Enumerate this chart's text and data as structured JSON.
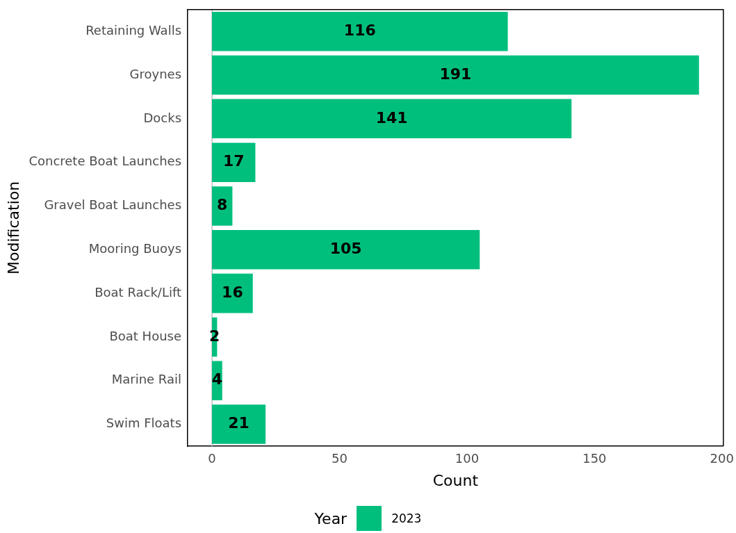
{
  "chart_data": {
    "type": "bar",
    "orientation": "horizontal",
    "xlabel": "Count",
    "ylabel": "Modification",
    "legend_title": "Year",
    "categories": [
      "Retaining Walls",
      "Groynes",
      "Docks",
      "Concrete Boat Launches",
      "Gravel Boat Launches",
      "Mooring Buoys",
      "Boat Rack/Lift",
      "Boat House",
      "Marine Rail",
      "Swim Floats"
    ],
    "series": [
      {
        "name": "2023",
        "color": "#00bf7d",
        "values": [
          116,
          191,
          141,
          17,
          8,
          105,
          16,
          2,
          4,
          21
        ]
      }
    ],
    "xlim": [
      -9.55,
      200.55
    ],
    "xticks": [
      0,
      50,
      100,
      150,
      200
    ],
    "ref_lines": [
      {
        "axis": "x",
        "value": 0,
        "color": "#bebebe"
      }
    ],
    "data_labels": true,
    "grid": false,
    "legend": "bottom"
  }
}
